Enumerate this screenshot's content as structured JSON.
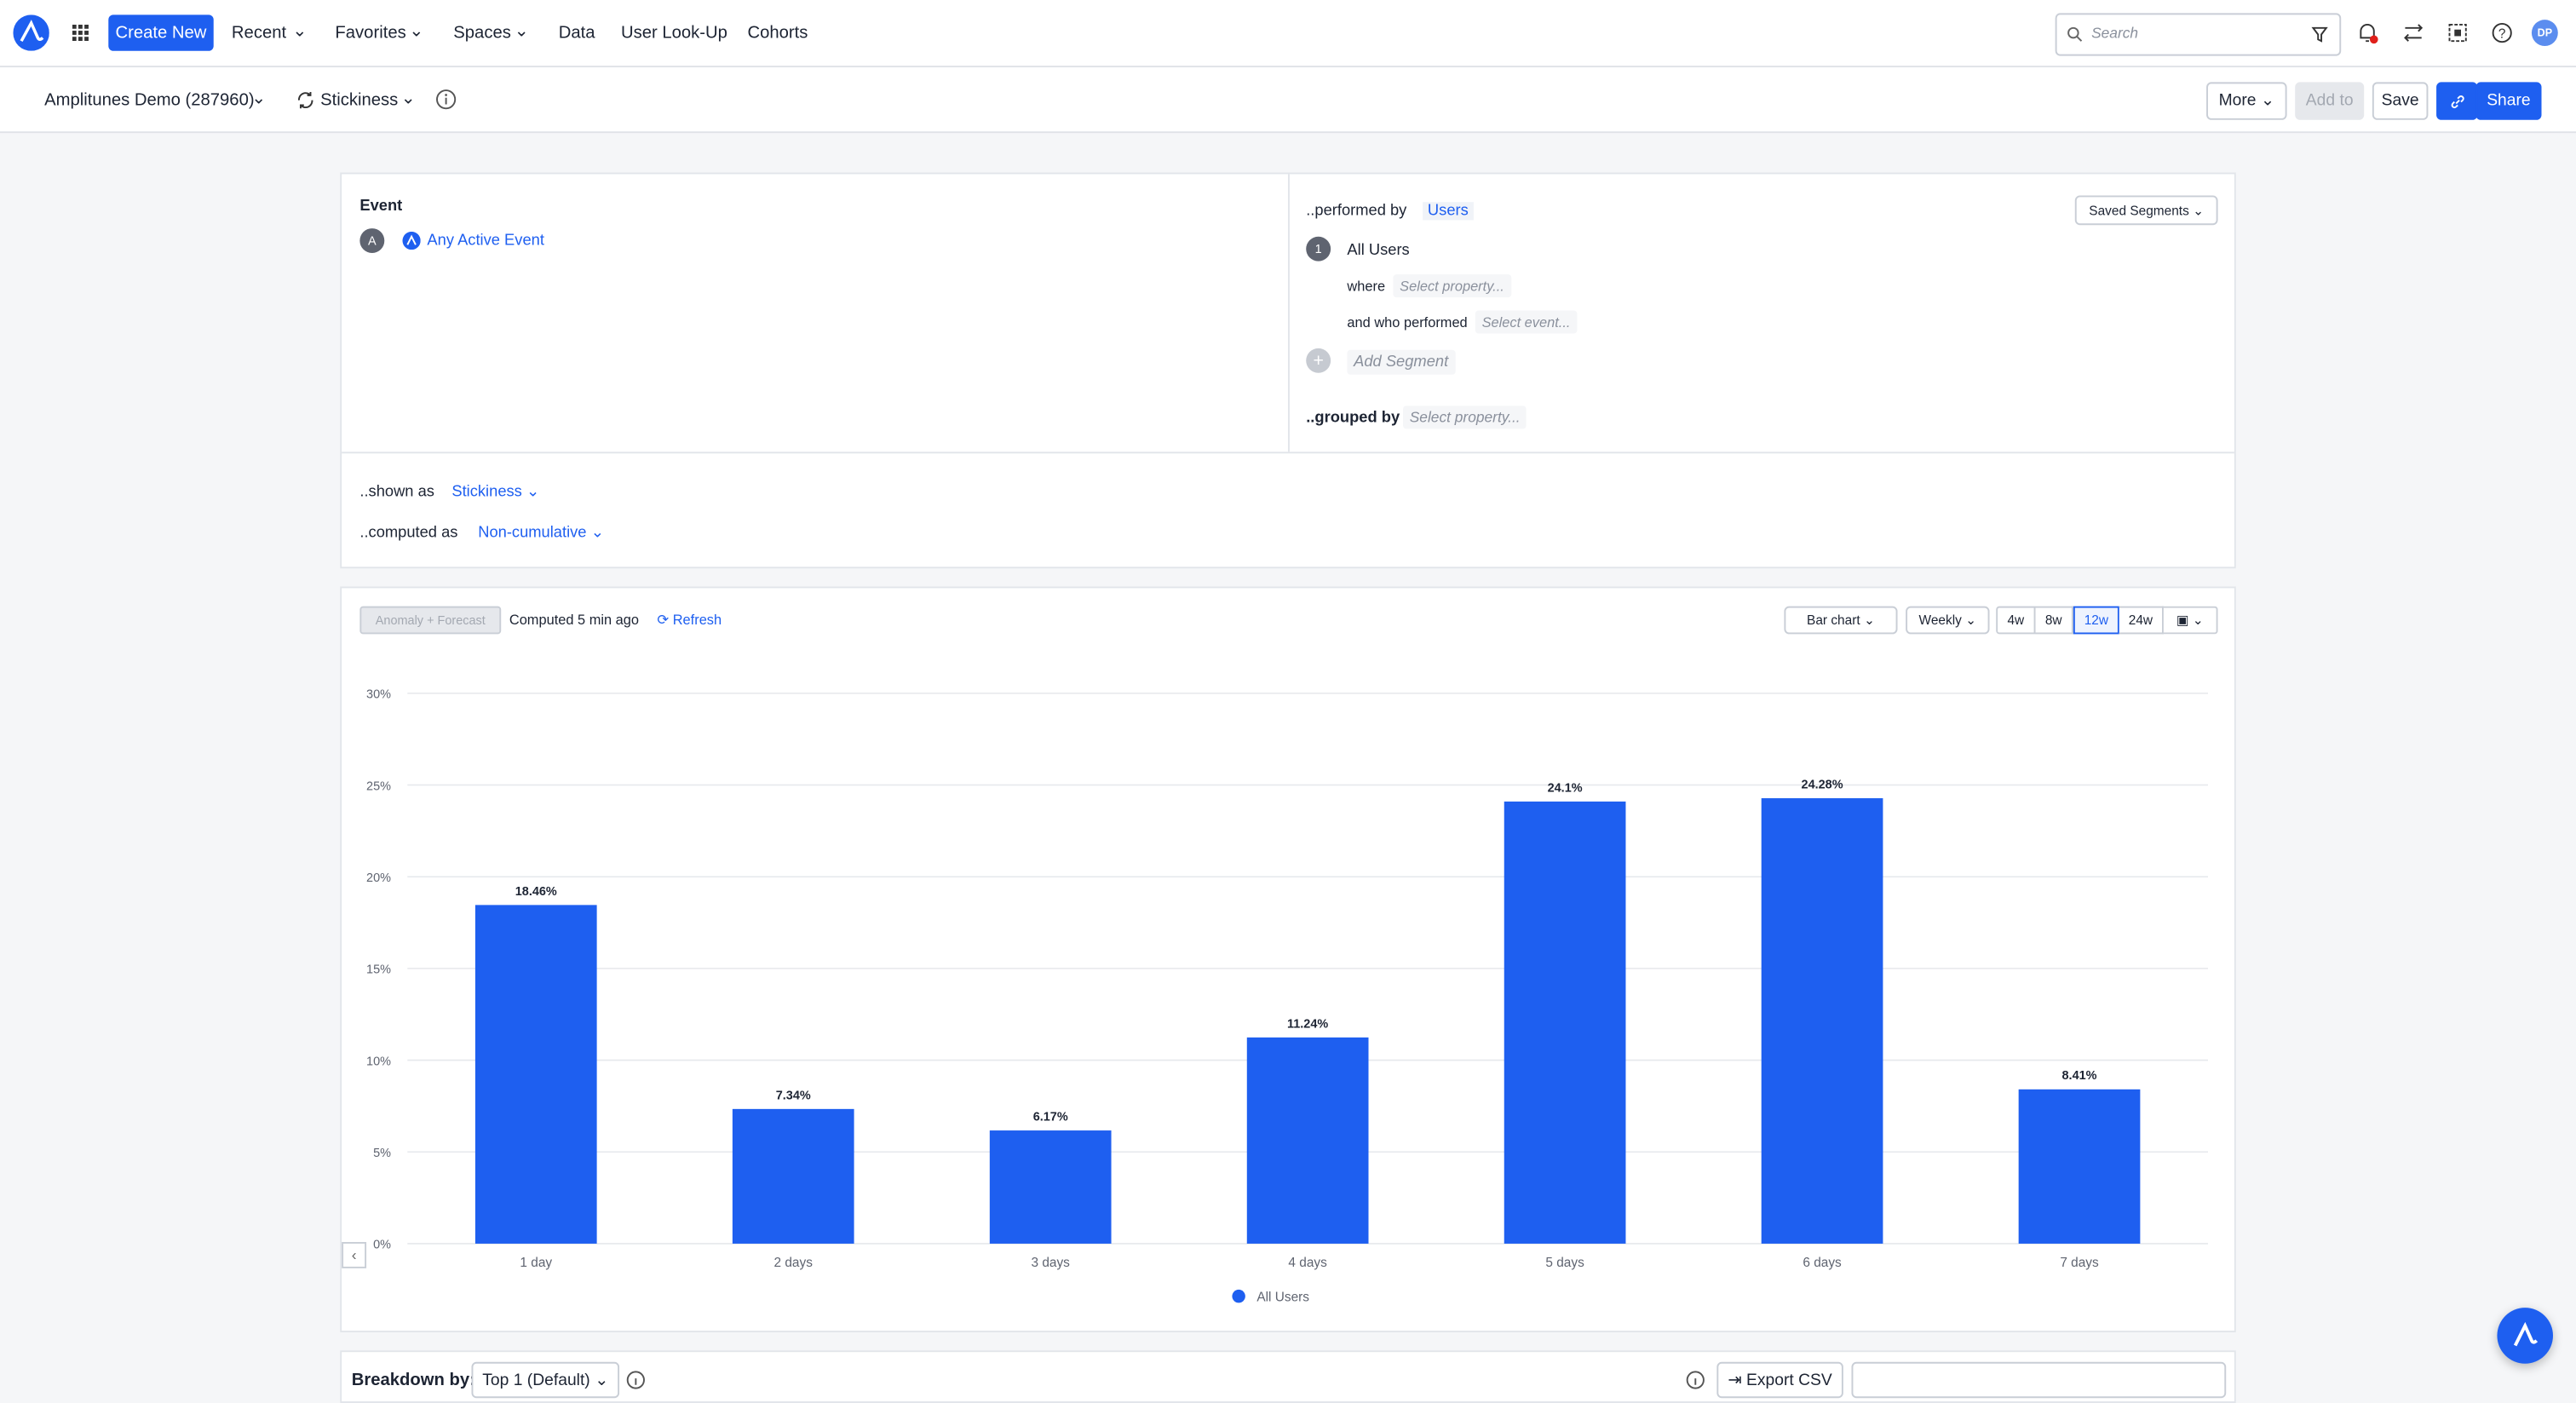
{
  "nav": {
    "create": "Create New",
    "menus": [
      "Recent",
      "Favorites",
      "Spaces"
    ],
    "links": [
      "Data",
      "User Look-Up",
      "Cohorts"
    ],
    "search_placeholder": "Search",
    "avatar": "DP"
  },
  "toolbar": {
    "project": "Amplitunes Demo (287960)",
    "chart_type": "Stickiness",
    "more": "More",
    "add_to": "Add to",
    "save": "Save",
    "share": "Share"
  },
  "query": {
    "event_heading": "Event",
    "event_letter": "A",
    "event": "Any Active Event",
    "performed_by": "..performed by",
    "users": "Users",
    "saved_segments": "Saved Segments",
    "segment_number": "1",
    "segment": "All Users",
    "where": "where",
    "select_property": "Select property...",
    "who_performed": "and who performed",
    "select_event": "Select event...",
    "add_segment": "Add Segment",
    "grouped_by": "..grouped by",
    "group_select": "Select property...",
    "shown_as": "..shown as",
    "shown_value": "Stickiness",
    "computed_as": "..computed as",
    "computed_value": "Non-cumulative"
  },
  "controls": {
    "anomaly": "Anomaly + Forecast",
    "computed": "Computed 5 min ago",
    "refresh": "Refresh",
    "chart_kind": "Bar chart",
    "interval": "Weekly",
    "ranges": [
      "4w",
      "8w",
      "12w",
      "24w"
    ]
  },
  "chart_data": {
    "type": "bar",
    "categories": [
      "1 day",
      "2 days",
      "3 days",
      "4 days",
      "5 days",
      "6 days",
      "7 days"
    ],
    "series": [
      {
        "name": "All Users",
        "color": "#1e5ff0",
        "values": [
          18.46,
          7.34,
          6.17,
          11.24,
          24.1,
          24.28,
          8.41
        ],
        "value_labels": [
          "18.46%",
          "7.34%",
          "6.17%",
          "11.24%",
          "24.1%",
          "24.28%",
          "8.41%"
        ]
      }
    ],
    "ylim": [
      0,
      30
    ],
    "yticks": [
      {
        "value": 0,
        "label": "0%"
      },
      {
        "value": 5,
        "label": "5%"
      },
      {
        "value": 10,
        "label": "10%"
      },
      {
        "value": 15,
        "label": "15%"
      },
      {
        "value": 20,
        "label": "20%"
      },
      {
        "value": 25,
        "label": "25%"
      },
      {
        "value": 30,
        "label": "30%"
      }
    ],
    "grid": true
  },
  "breakdown": {
    "label": "Breakdown by:",
    "select": "Top 1 (Default)",
    "export": "Export CSV"
  }
}
